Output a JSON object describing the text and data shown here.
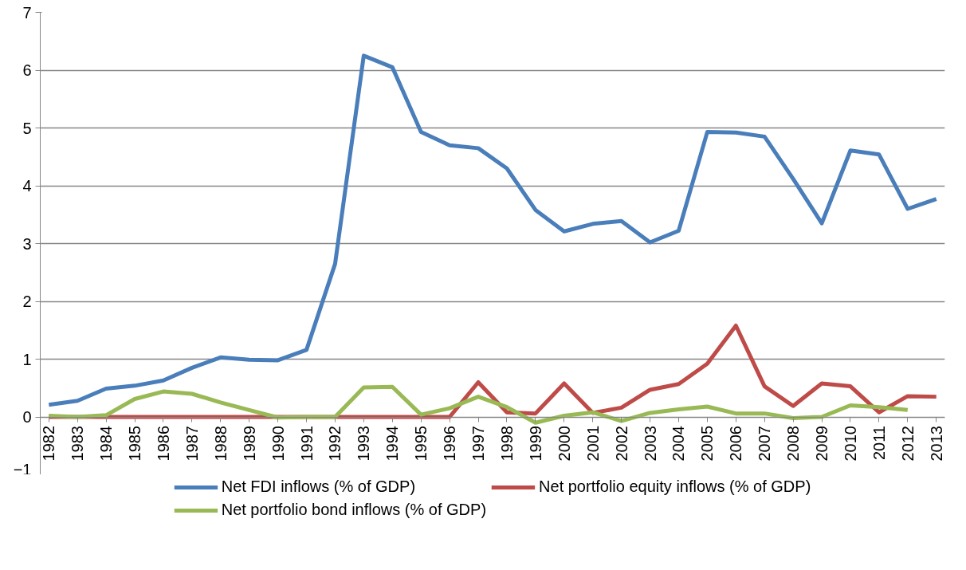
{
  "chart_data": {
    "type": "line",
    "categories": [
      "1982",
      "1983",
      "1984",
      "1985",
      "1986",
      "1987",
      "1988",
      "1989",
      "1990",
      "1991",
      "1992",
      "1993",
      "1994",
      "1995",
      "1996",
      "1997",
      "1998",
      "1999",
      "2000",
      "2001",
      "2002",
      "2003",
      "2004",
      "2005",
      "2006",
      "2007",
      "2008",
      "2009",
      "2010",
      "2011",
      "2012",
      "2013"
    ],
    "series": [
      {
        "name": "Net FDI inflows (% of GDP)",
        "color": "#4a7ebb",
        "values": [
          0.21,
          0.28,
          0.49,
          0.54,
          0.63,
          0.85,
          1.03,
          0.99,
          0.98,
          1.16,
          2.65,
          6.25,
          6.05,
          4.93,
          4.7,
          4.65,
          4.3,
          3.58,
          3.21,
          3.34,
          3.39,
          3.02,
          3.22,
          4.93,
          4.92,
          4.85,
          4.12,
          3.35,
          4.61,
          4.54,
          3.6,
          3.77
        ]
      },
      {
        "name": "Net portfolio equity inflows (% of GDP)",
        "color": "#be4b48",
        "values": [
          0,
          0,
          0,
          0,
          0,
          0,
          0,
          0,
          0,
          0,
          0,
          0,
          0,
          0,
          0,
          0.6,
          0.08,
          0.06,
          0.58,
          0.07,
          0.16,
          0.47,
          0.57,
          0.92,
          1.58,
          0.53,
          0.19,
          0.58,
          0.53,
          0.08,
          0.36,
          0.35
        ]
      },
      {
        "name": "Net portfolio bond inflows (% of GDP)",
        "color": "#98b954",
        "values": [
          0.02,
          0.0,
          0.03,
          0.31,
          0.44,
          0.4,
          0.25,
          0.12,
          -0.01,
          0.0,
          0.0,
          0.51,
          0.52,
          0.04,
          0.15,
          0.35,
          0.17,
          -0.1,
          0.02,
          0.08,
          -0.07,
          0.07,
          0.13,
          0.18,
          0.06,
          0.06,
          -0.02,
          0.0,
          0.2,
          0.17,
          0.12,
          null
        ]
      }
    ],
    "ylim": [
      -1,
      7
    ],
    "yticks": [
      -1,
      0,
      1,
      2,
      3,
      4,
      5,
      6,
      7
    ],
    "grid": "y",
    "legend": "bottom",
    "marker": "none",
    "line_style": "solid"
  }
}
